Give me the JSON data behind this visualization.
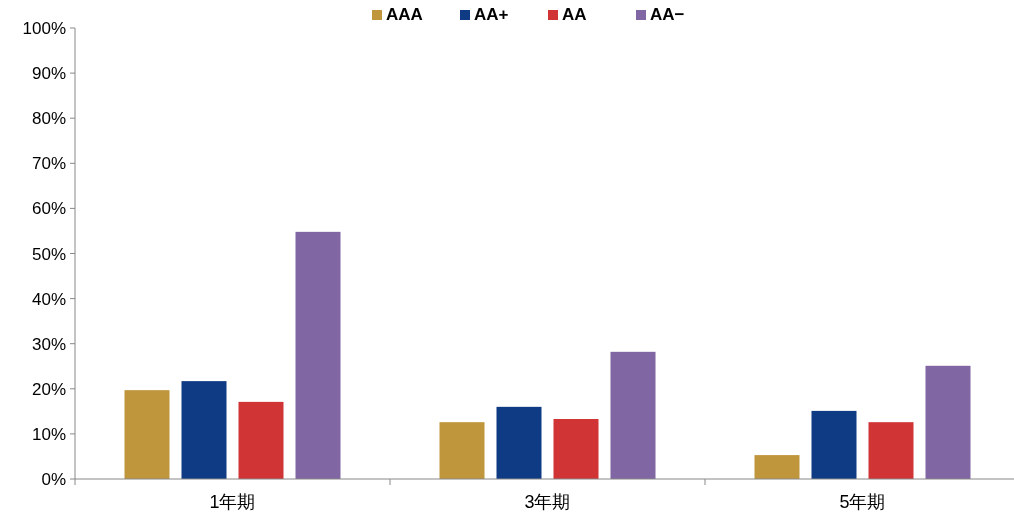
{
  "chart_data": {
    "type": "bar",
    "categories": [
      "1年期",
      "3年期",
      "5年期"
    ],
    "series": [
      {
        "name": "AAA",
        "color": "#c0963c",
        "values": [
          19.7,
          12.6,
          5.3
        ]
      },
      {
        "name": "AA+",
        "color": "#0f3a84",
        "values": [
          21.7,
          16.0,
          15.1
        ]
      },
      {
        "name": "AA",
        "color": "#d03434",
        "values": [
          17.1,
          13.3,
          12.6
        ]
      },
      {
        "name": "AA−",
        "color": "#8067a4",
        "values": [
          54.8,
          28.2,
          25.1
        ]
      }
    ],
    "ylim": [
      0,
      100
    ],
    "yticks": [
      {
        "value": 0,
        "label": "0%"
      },
      {
        "value": 10,
        "label": "10%"
      },
      {
        "value": 20,
        "label": "20%"
      },
      {
        "value": 30,
        "label": "30%"
      },
      {
        "value": 40,
        "label": "40%"
      },
      {
        "value": 50,
        "label": "50%"
      },
      {
        "value": 60,
        "label": "60%"
      },
      {
        "value": 70,
        "label": "70%"
      },
      {
        "value": 80,
        "label": "80%"
      },
      {
        "value": 90,
        "label": "90%"
      },
      {
        "value": 100,
        "label": "100%"
      }
    ],
    "grid": false,
    "legend": "top"
  }
}
